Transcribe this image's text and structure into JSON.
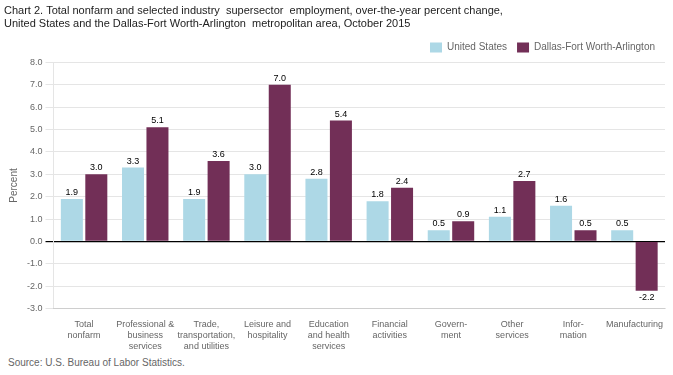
{
  "chart_data": {
    "type": "bar",
    "title": "Chart 2. Total nonfarm and selected industry  supersector  employment, over-the-year percent change,",
    "subtitle": "United States and the Dallas-Fort Worth-Arlington  metropolitan area, October 2015",
    "ylabel": "Percent",
    "source": "Source: U.S. Bureau of Labor Statistics.",
    "categories": [
      "Total\nnonfarm",
      "Professional &\nbusiness\nservices",
      "Trade,\ntransportation,\nand utilities",
      "Leisure and\nhospitality",
      "Education\nand health\nservices",
      "Financial\nactivities",
      "Govern-\nment",
      "Other\nservices",
      "Infor-\nmation",
      "Manufacturing"
    ],
    "series": [
      {
        "name": "United States",
        "color": "#add8e6",
        "values": [
          1.9,
          3.3,
          1.9,
          3.0,
          2.8,
          1.8,
          0.5,
          1.1,
          1.6,
          0.5
        ],
        "value_labels": [
          "1.9",
          "3.3",
          "1.9",
          "3.0",
          "2.8",
          "1.8",
          "0.5",
          "1.1",
          "1.6",
          "0.5"
        ]
      },
      {
        "name": "Dallas-Fort Worth-Arlington",
        "color": "#722f57",
        "values": [
          3.0,
          5.1,
          3.6,
          7.0,
          5.4,
          2.4,
          0.9,
          2.7,
          0.5,
          -2.2
        ],
        "value_labels": [
          "3.0",
          "5.1",
          "3.6",
          "7.0",
          "5.4",
          "2.4",
          "0.9",
          "2.7",
          "0.5",
          "-2.2"
        ]
      }
    ],
    "ylim": [
      -3.0,
      8.0
    ],
    "yticks": [
      {
        "value": -3,
        "label": "-3.0"
      },
      {
        "value": -2,
        "label": "-2.0"
      },
      {
        "value": -1,
        "label": "-1.0"
      },
      {
        "value": 0,
        "label": "0.0"
      },
      {
        "value": 1,
        "label": "1.0"
      },
      {
        "value": 2,
        "label": "2.0"
      },
      {
        "value": 3,
        "label": "3.0"
      },
      {
        "value": 4,
        "label": "4.0"
      },
      {
        "value": 5,
        "label": "5.0"
      },
      {
        "value": 6,
        "label": "6.0"
      },
      {
        "value": 7,
        "label": "7.0"
      },
      {
        "value": 8,
        "label": "8.0"
      }
    ],
    "grid": true,
    "legend": "upper right",
    "data_labels": true
  }
}
